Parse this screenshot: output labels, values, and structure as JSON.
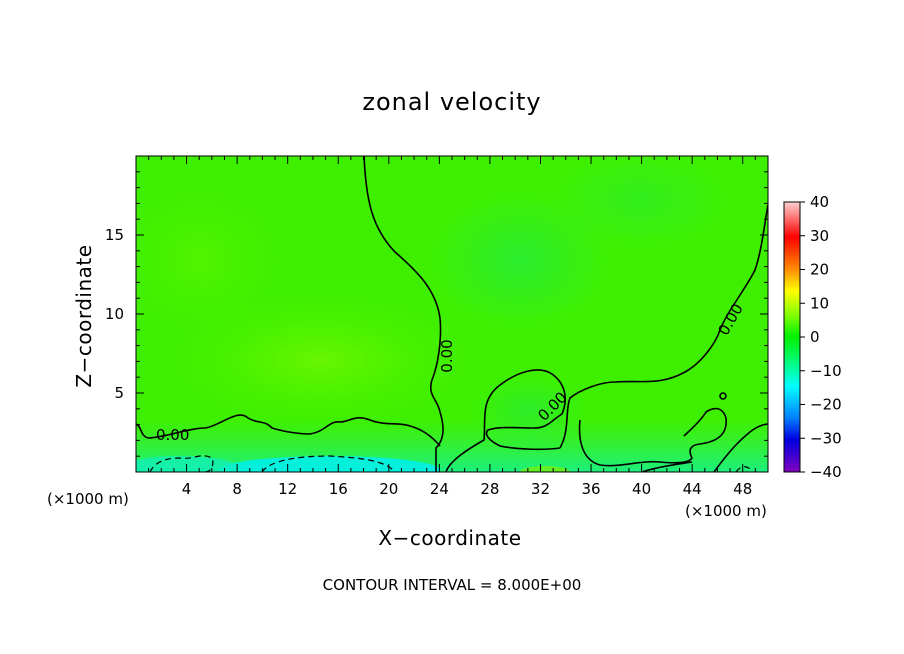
{
  "chart_data": {
    "type": "heatmap",
    "title": "zonal velocity",
    "xlabel": "X−coordinate",
    "ylabel": "Z−coordinate",
    "x_unit_left": "(×1000 m)",
    "x_unit_right": "(×1000 m)",
    "xlim": [
      0,
      50
    ],
    "ylim": [
      0,
      20
    ],
    "x_ticks": [
      4,
      8,
      12,
      16,
      20,
      24,
      28,
      32,
      36,
      40,
      44,
      48
    ],
    "y_ticks": [
      5,
      10,
      15
    ],
    "colorbar": {
      "ticks": [
        40,
        30,
        20,
        10,
        0,
        -10,
        -20,
        -30,
        -40
      ],
      "range": [
        -40,
        40
      ]
    },
    "contour_labels": [
      "0.00",
      "0.00",
      "0.00",
      "0.00"
    ],
    "footer": "CONTOUR INTERVAL = 8.000E+00"
  }
}
